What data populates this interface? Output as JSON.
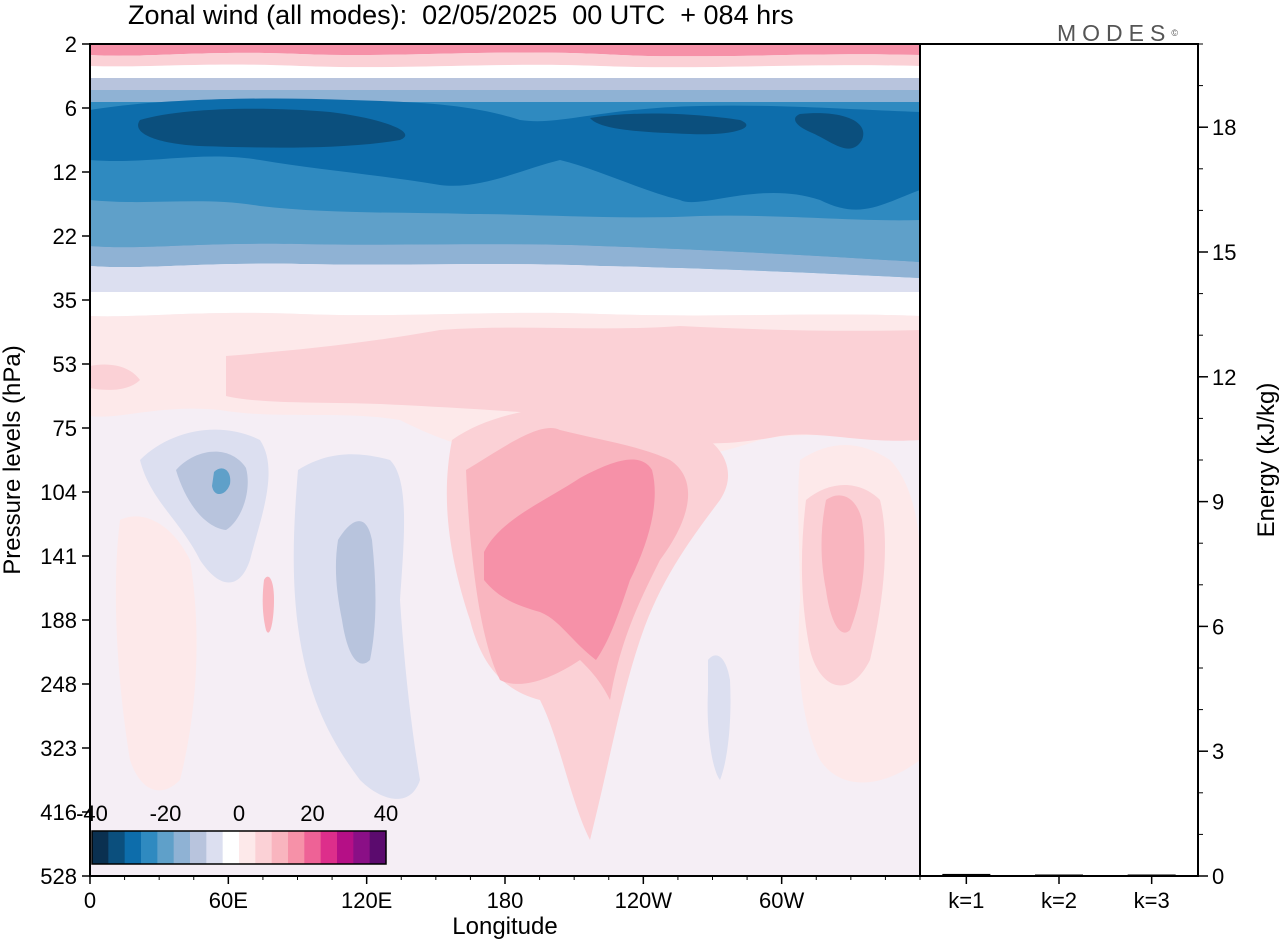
{
  "title": "Zonal wind (all modes):  02/05/2025  00 UTC  + 084 hrs",
  "brand": "MODES",
  "brand_mark": "©",
  "chart_data": [
    {
      "type": "heatmap",
      "title": "Zonal wind (all modes):  02/05/2025  00 UTC  + 084 hrs",
      "xlabel": "Longitude",
      "ylabel": "Pressure levels (hPa)",
      "x_ticks": [
        "0",
        "60E",
        "120E",
        "180",
        "120W",
        "60W"
      ],
      "y_ticks": [
        "2",
        "6",
        "12",
        "22",
        "35",
        "53",
        "75",
        "104",
        "141",
        "188",
        "248",
        "323",
        "416",
        "528"
      ],
      "y_scale": "log-like (pressure levels, top = 2 hPa, bottom = 528 hPa)",
      "colorbar": {
        "labels": [
          "-40",
          "-20",
          "0",
          "20",
          "40"
        ],
        "range": [
          -40,
          40
        ],
        "colors": [
          "#0a3050",
          "#0b4f7d",
          "#0d6dab",
          "#2f8ac0",
          "#5fa0c9",
          "#8fb2d4",
          "#b8c4dd",
          "#dcdff0",
          "#ffffff",
          "#fde9ea",
          "#fbd1d6",
          "#f9b5bf",
          "#f691a8",
          "#ee6296",
          "#dd2e8b",
          "#b50f86",
          "#8a0f86",
          "#5b0b6e"
        ]
      },
      "bands": [
        {
          "from_hPa": 2,
          "to_hPa": 3,
          "range": "20 to 25",
          "color": "#f691a8"
        },
        {
          "from_hPa": 3,
          "to_hPa": 4.5,
          "range": "0 to 10",
          "color": "#fde9ea"
        },
        {
          "from_hPa": 4.5,
          "to_hPa": 6,
          "range": "-20 to -10",
          "color": "#8fb2d4"
        },
        {
          "from_hPa": 6,
          "to_hPa": 12,
          "range": "-35 to -30",
          "color": "#0d6dab"
        },
        {
          "from_hPa": 12,
          "to_hPa": 20,
          "range": "-25 to -20",
          "color": "#2f8ac0"
        },
        {
          "from_hPa": 20,
          "to_hPa": 30,
          "range": "-15 to -5",
          "color": "#8fb2d4"
        },
        {
          "from_hPa": 35,
          "to_hPa": 75,
          "range": "5 to 10",
          "color": "#fbd1d6"
        },
        {
          "from_hPa": 75,
          "to_hPa": 528,
          "range": "-5 to 5",
          "color": "#f5eef5"
        }
      ],
      "features": [
        {
          "description": "westerly maximum",
          "lon": "150W",
          "levels_hPa": "104-188",
          "value": "15 to 20",
          "color": "#f691a8"
        },
        {
          "description": "easterly region",
          "lon": "60E",
          "levels_hPa": "75-141",
          "value": "-10 to -5",
          "color": "#b8c4dd"
        },
        {
          "description": "easterly region",
          "lon": "120E",
          "levels_hPa": "104-323",
          "value": "-10 to -5",
          "color": "#b8c4dd"
        },
        {
          "description": "westerly region",
          "lon": "30W",
          "levels_hPa": "104-188",
          "value": "10 to 15",
          "color": "#f9b5bf"
        }
      ]
    },
    {
      "type": "bar",
      "categories": [
        "k=1",
        "k=2",
        "k=3"
      ],
      "values": [
        0.05,
        0.02,
        0.02
      ],
      "ylabel": "Energy (kJ/kg)",
      "y_ticks": [
        "0",
        "3",
        "6",
        "9",
        "12",
        "15",
        "18"
      ],
      "ylim": [
        0,
        20
      ]
    }
  ]
}
